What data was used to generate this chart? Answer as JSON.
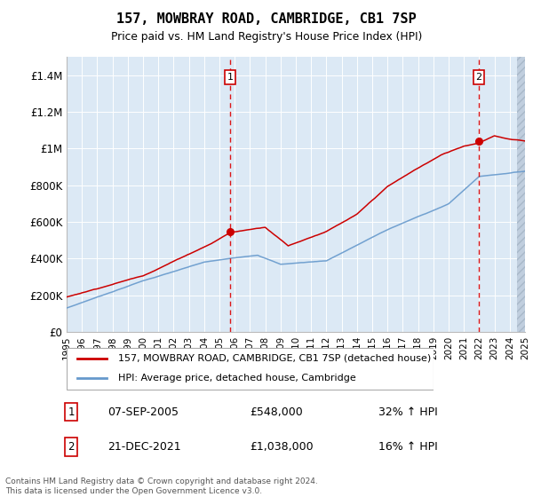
{
  "title": "157, MOWBRAY ROAD, CAMBRIDGE, CB1 7SP",
  "subtitle": "Price paid vs. HM Land Registry's House Price Index (HPI)",
  "background_color": "#dce9f5",
  "plot_bg": "#dce9f5",
  "red_line_color": "#cc0000",
  "blue_line_color": "#6699cc",
  "ylim": [
    0,
    1500000
  ],
  "yticks": [
    0,
    200000,
    400000,
    600000,
    800000,
    1000000,
    1200000,
    1400000
  ],
  "ytick_labels": [
    "£0",
    "£200K",
    "£400K",
    "£600K",
    "£800K",
    "£1M",
    "£1.2M",
    "£1.4M"
  ],
  "x_start_year": 1995,
  "x_end_year": 2025,
  "sale1_year": 2005.69,
  "sale1_price": 548000,
  "sale2_year": 2021.97,
  "sale2_price": 1038000,
  "legend_red": "157, MOWBRAY ROAD, CAMBRIDGE, CB1 7SP (detached house)",
  "legend_blue": "HPI: Average price, detached house, Cambridge",
  "annotation1_date": "07-SEP-2005",
  "annotation1_price": "£548,000",
  "annotation1_hpi": "32% ↑ HPI",
  "annotation2_date": "21-DEC-2021",
  "annotation2_price": "£1,038,000",
  "annotation2_hpi": "16% ↑ HPI",
  "footer": "Contains HM Land Registry data © Crown copyright and database right 2024.\nThis data is licensed under the Open Government Licence v3.0."
}
